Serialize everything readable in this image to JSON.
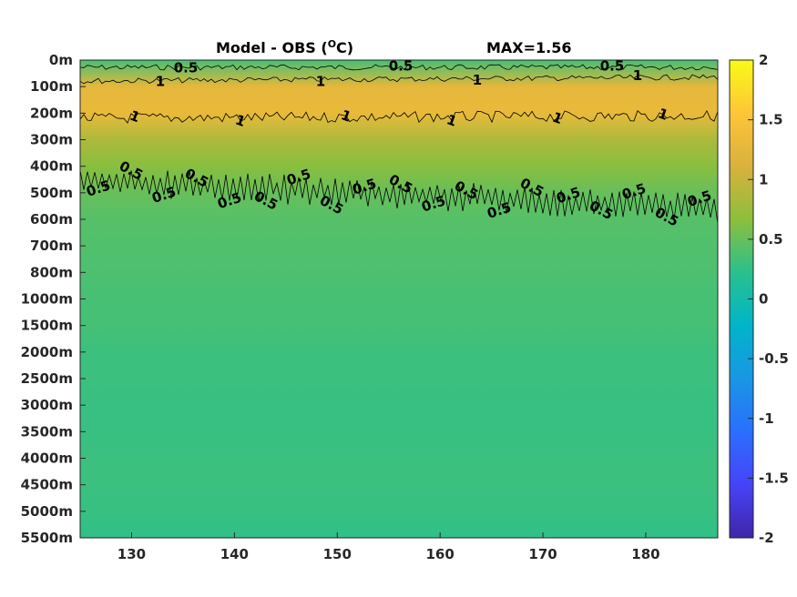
{
  "chart_data": {
    "type": "heatmap",
    "title": "Model - OBS (",
    "title_unit_sup": "O",
    "title_unit_tail": "C)",
    "max_label": "MAX=1.56",
    "xlim": [
      125,
      187
    ],
    "x_ticks": [
      130,
      140,
      150,
      160,
      170,
      180
    ],
    "y_tick_labels": [
      "0m",
      "100m",
      "200m",
      "300m",
      "400m",
      "500m",
      "600m",
      "700m",
      "800m",
      "1000m",
      "1500m",
      "2000m",
      "2500m",
      "3000m",
      "3500m",
      "4000m",
      "4500m",
      "5000m",
      "5500m"
    ],
    "colorbar": {
      "range": [
        -2,
        2
      ],
      "ticks": [
        "2",
        "1.5",
        "1",
        "0.5",
        "0",
        "-0.5",
        "-1",
        "-1.5",
        "-2"
      ],
      "colormap": [
        "#3e26a8",
        "#4743f8",
        "#2a6fff",
        "#1996e4",
        "#00b5c9",
        "#2ac08c",
        "#8cbf3c",
        "#d9b13d",
        "#fec537",
        "#f9fb15"
      ]
    },
    "depth_profile": [
      {
        "depth": "0m",
        "value": 0.35
      },
      {
        "depth": "100m",
        "value": 1.25
      },
      {
        "depth": "200m",
        "value": 1.3
      },
      {
        "depth": "300m",
        "value": 0.85
      },
      {
        "depth": "400m",
        "value": 0.65
      },
      {
        "depth": "500m",
        "value": 0.5
      },
      {
        "depth": "600m",
        "value": 0.42
      },
      {
        "depth": "700m",
        "value": 0.4
      },
      {
        "depth": "800m",
        "value": 0.38
      },
      {
        "depth": "1000m",
        "value": 0.35
      },
      {
        "depth": "1500m",
        "value": 0.35
      },
      {
        "depth": "2000m",
        "value": 0.3
      },
      {
        "depth": "2500m",
        "value": 0.3
      },
      {
        "depth": "3000m",
        "value": 0.28
      },
      {
        "depth": "3500m",
        "value": 0.28
      },
      {
        "depth": "4000m",
        "value": 0.3
      },
      {
        "depth": "4500m",
        "value": 0.3
      },
      {
        "depth": "5000m",
        "value": 0.28
      },
      {
        "depth": "5500m",
        "value": 0.25
      }
    ],
    "contours": [
      {
        "level": "0.5",
        "labels": [
          "0.5",
          "0.5",
          "0.5"
        ]
      },
      {
        "level": "1",
        "labels": [
          "1",
          "1",
          "1",
          "1"
        ]
      },
      {
        "level": "1",
        "labels": [
          "1",
          "1",
          "1",
          "1",
          "1",
          "1"
        ]
      },
      {
        "level": "0.5",
        "labels": [
          "0.5",
          "0.5",
          "0.5",
          "0.5",
          "0.5",
          "0.5",
          "0.5",
          "0.5",
          "0.5",
          "0.5",
          "0.5",
          "0.5",
          "0.5",
          "0.5",
          "0.5",
          "0.5",
          "0.5",
          "0.5",
          "0.5"
        ]
      }
    ]
  }
}
